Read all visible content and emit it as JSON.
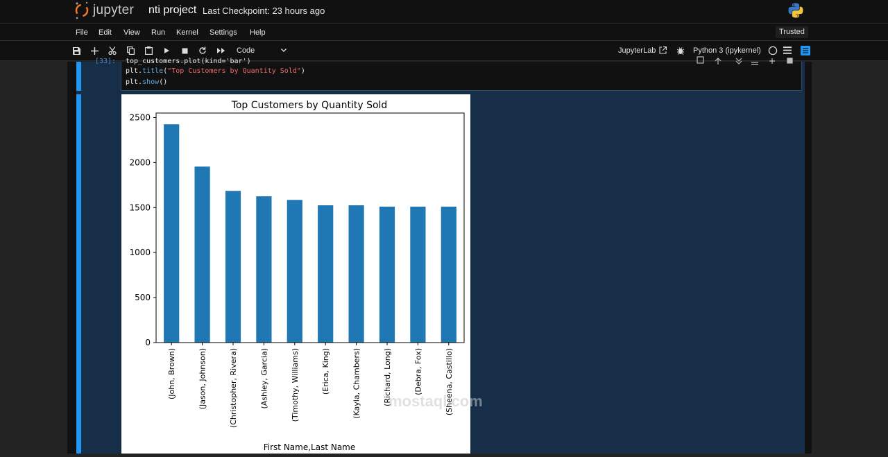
{
  "app": {
    "logo_text": "jupyter",
    "notebook_title": "nti project",
    "checkpoint": "Last Checkpoint: 23 hours ago",
    "trusted": "Trusted",
    "kernel_label": "JupyterLab",
    "kernel_name": "Python 3 (ipykernel)"
  },
  "menu": [
    "File",
    "Edit",
    "View",
    "Run",
    "Kernel",
    "Settings",
    "Help"
  ],
  "toolbar": {
    "cell_type": "Code"
  },
  "cell": {
    "prompt": "[33]:",
    "line1": "top_customers.plot(kind='bar')",
    "line2_pre": "plt.",
    "line2_fn": "title",
    "line2_open": "(",
    "line2_str": "\"Top Customers by Quantity Sold\"",
    "line2_close": ")",
    "line3_pre": "plt.",
    "line3_fn": "show",
    "line3_post": "()"
  },
  "watermark": "mostaql.com",
  "colors": {
    "bar": "#1f77b4",
    "accent": "#2196f3",
    "notebook_bg": "#162e48"
  },
  "chart_data": {
    "type": "bar",
    "title": "Top Customers by Quantity Sold",
    "xlabel": "First Name,Last Name",
    "ylabel": "",
    "ylim": [
      0,
      2550
    ],
    "yticks": [
      0,
      500,
      1000,
      1500,
      2000,
      2500
    ],
    "categories": [
      "(John, Brown)",
      "(Jason, Johnson)",
      "(Christopher, Rivera)",
      "(Ashley, Garcia)",
      "(Timothy, Williams)",
      "(Erica, King)",
      "(Kayla, Chambers)",
      "(Richard, Long)",
      "(Debra, Fox)",
      "(Sheena, Castillo)"
    ],
    "values": [
      2425,
      1955,
      1685,
      1625,
      1585,
      1525,
      1525,
      1510,
      1510,
      1510
    ]
  }
}
